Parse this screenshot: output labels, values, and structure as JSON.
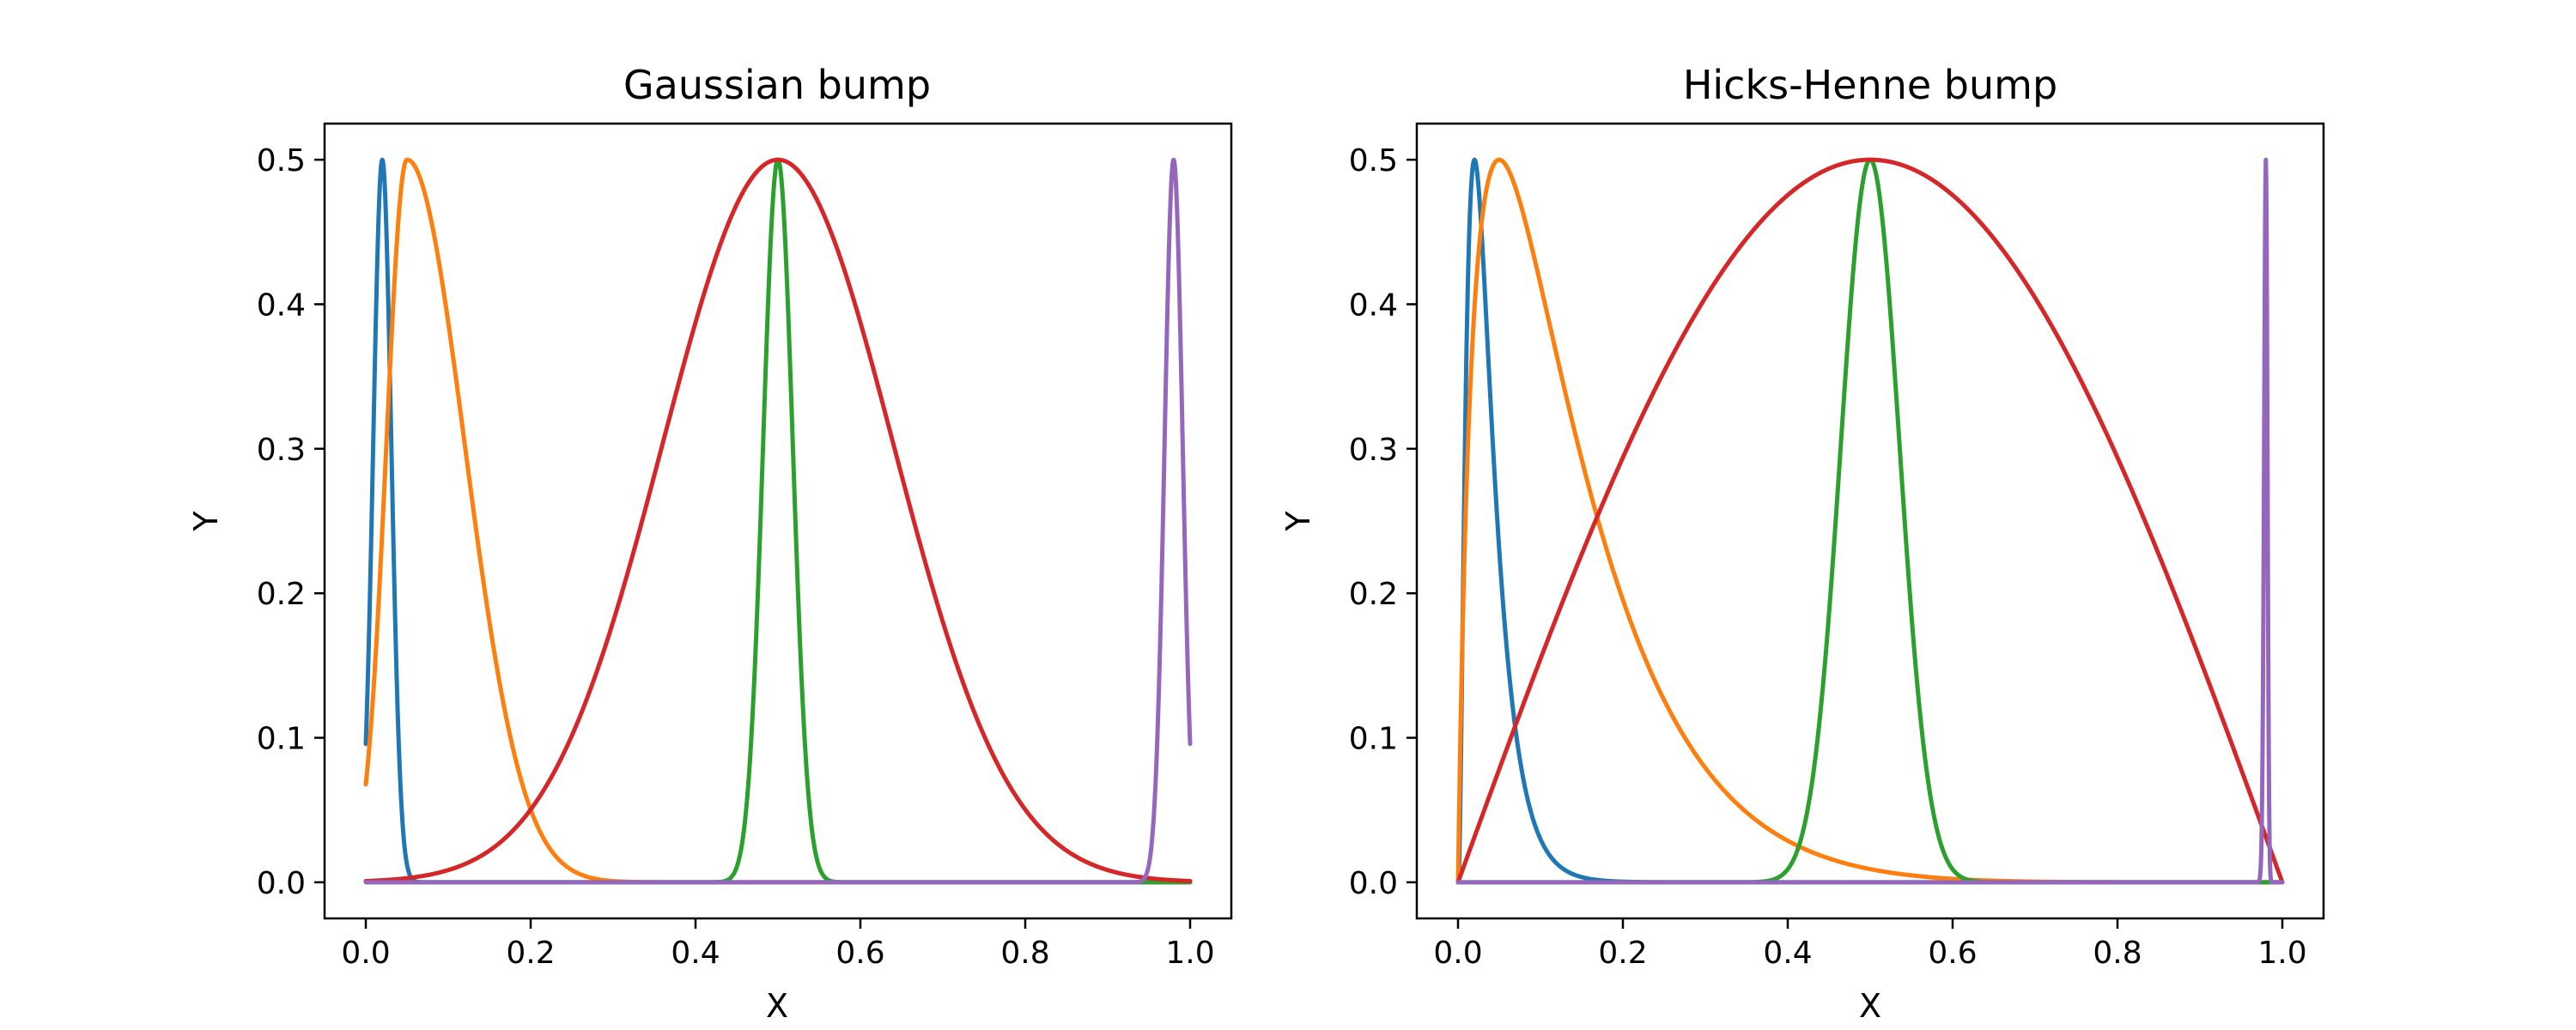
{
  "chart_data": [
    {
      "type": "line",
      "title": "Gaussian bump",
      "xlabel": "X",
      "ylabel": "Y",
      "xlim": [
        -0.05,
        1.05
      ],
      "ylim": [
        -0.025,
        0.525
      ],
      "xticks": [
        "0.0",
        "0.2",
        "0.4",
        "0.6",
        "0.8",
        "1.0"
      ],
      "yticks": [
        "0.0",
        "0.1",
        "0.2",
        "0.3",
        "0.4",
        "0.5"
      ],
      "grid": false,
      "legend": "none",
      "series": [
        {
          "color": "#1f77b4",
          "kind": "gaussian",
          "peak_x": 0.02,
          "width": 0.011,
          "height": 0.5
        },
        {
          "color": "#ff7f0e",
          "kind": "gaussian",
          "peak_x": 0.05,
          "width": 0.025,
          "width_right": 0.07,
          "height": 0.5
        },
        {
          "color": "#2ca02c",
          "kind": "gaussian",
          "peak_x": 0.5,
          "width": 0.018,
          "height": 0.5
        },
        {
          "color": "#d62728",
          "kind": "gaussian",
          "peak_x": 0.5,
          "width": 0.14,
          "height": 0.5
        },
        {
          "color": "#9467bd",
          "kind": "gaussian",
          "peak_x": 0.98,
          "width": 0.011,
          "height": 0.5
        }
      ]
    },
    {
      "type": "line",
      "title": "Hicks-Henne bump",
      "xlabel": "X",
      "ylabel": "Y",
      "xlim": [
        -0.05,
        1.05
      ],
      "ylim": [
        -0.025,
        0.525
      ],
      "xticks": [
        "0.0",
        "0.2",
        "0.4",
        "0.6",
        "0.8",
        "1.0"
      ],
      "yticks": [
        "0.0",
        "0.1",
        "0.2",
        "0.3",
        "0.4",
        "0.5"
      ],
      "grid": false,
      "legend": "none",
      "series": [
        {
          "color": "#1f77b4",
          "kind": "hicks-henne",
          "peak_x": 0.02,
          "sharpness": 20,
          "height": 0.5
        },
        {
          "color": "#ff7f0e",
          "kind": "hicks-henne",
          "peak_x": 0.05,
          "sharpness": 5,
          "height": 0.5
        },
        {
          "color": "#2ca02c",
          "kind": "hicks-henne",
          "peak_x": 0.5,
          "sharpness": 80,
          "height": 0.5
        },
        {
          "color": "#d62728",
          "kind": "hicks-henne",
          "peak_x": 0.5,
          "sharpness": 1,
          "height": 0.5
        },
        {
          "color": "#9467bd",
          "kind": "hicks-henne",
          "peak_x": 0.98,
          "sharpness": 80,
          "height": 0.5
        }
      ]
    }
  ]
}
